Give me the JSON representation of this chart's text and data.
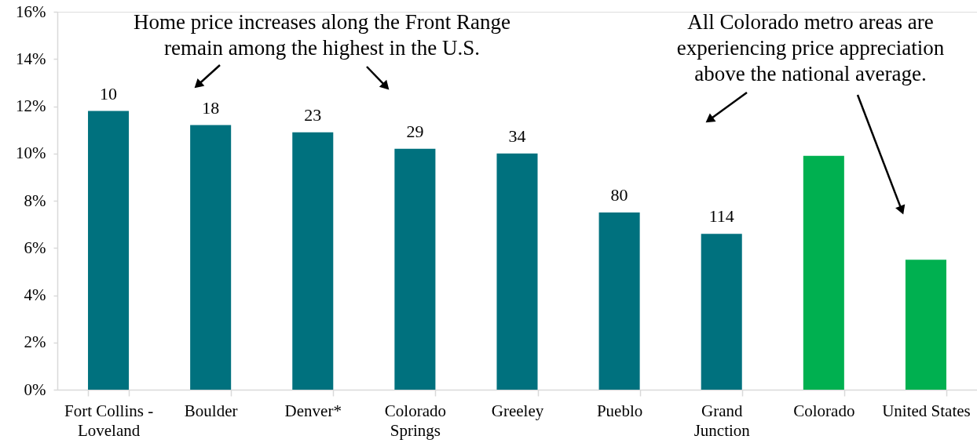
{
  "chart_data": {
    "type": "bar",
    "categories": [
      "Fort Collins - Loveland",
      "Boulder",
      "Denver*",
      "Colorado Springs",
      "Greeley",
      "Pueblo",
      "Grand Junction",
      "Colorado",
      "United States"
    ],
    "values": [
      11.8,
      11.2,
      10.9,
      10.2,
      10.0,
      7.5,
      6.6,
      9.9,
      5.5
    ],
    "colors": [
      "#00717e",
      "#00717e",
      "#00717e",
      "#00717e",
      "#00717e",
      "#00717e",
      "#00717e",
      "#00b050",
      "#00b050"
    ],
    "ylim": [
      0,
      16
    ],
    "yticks": [
      {
        "value": 0,
        "label": "0%"
      },
      {
        "value": 2,
        "label": "2%"
      },
      {
        "value": 4,
        "label": "4%"
      },
      {
        "value": 6,
        "label": "6%"
      },
      {
        "value": 8,
        "label": "8%"
      },
      {
        "value": 10,
        "label": "10%"
      },
      {
        "value": 12,
        "label": "12%"
      },
      {
        "value": 14,
        "label": "14%"
      },
      {
        "value": 16,
        "label": "16%"
      }
    ],
    "annotations": [
      "Home price increases along the Front Range remain among the highest in the U.S.",
      "All Colorado metro areas are experiencing price appreciation above the national average.",
      {
        "text": "10",
        "x": "Fort Collins - Loveland",
        "y": 11.8
      },
      {
        "text": "18",
        "x": "Boulder",
        "y": 11.2
      },
      {
        "text": "23",
        "x": "Denver*",
        "y": 10.9
      },
      {
        "text": "29",
        "x": "Colorado Springs",
        "y": 10.2
      },
      {
        "text": "34",
        "x": "Greeley",
        "y": 10.0
      },
      {
        "text": "80",
        "x": "Pueblo",
        "y": 7.5
      },
      {
        "text": "114",
        "x": "Grand Junction",
        "y": 6.6
      }
    ]
  }
}
